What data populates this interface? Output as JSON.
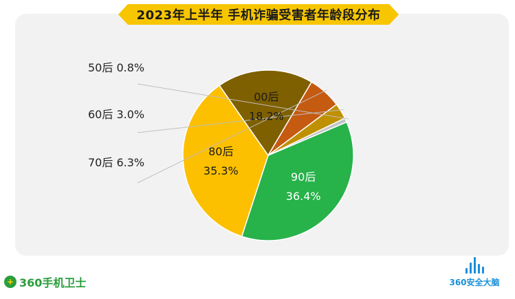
{
  "chart_data": {
    "type": "pie",
    "title": "2023年上半年 手机诈骗受害者年龄段分布",
    "slices": [
      {
        "label": "90后",
        "value": 36.4,
        "value_text": "36.4%",
        "color": "#27b24a",
        "label_pos": "inside"
      },
      {
        "label": "80后",
        "value": 35.3,
        "value_text": "35.3%",
        "color": "#fcc000",
        "label_pos": "inside"
      },
      {
        "label": "00后",
        "value": 18.2,
        "value_text": "18.2%",
        "color": "#7f6000",
        "label_pos": "inside"
      },
      {
        "label": "70后",
        "value": 6.3,
        "value_text": "6.3%",
        "color": "#c55a11",
        "label_pos": "outside"
      },
      {
        "label": "60后",
        "value": 3.0,
        "value_text": "3.0%",
        "color": "#bf9000",
        "label_pos": "outside"
      },
      {
        "label": "50后",
        "value": 0.8,
        "value_text": "0.8%",
        "color": "#c4c4c4",
        "label_pos": "outside"
      }
    ]
  },
  "branding": {
    "left_text": "360手机卫士",
    "right_text": "360安全大脑"
  }
}
